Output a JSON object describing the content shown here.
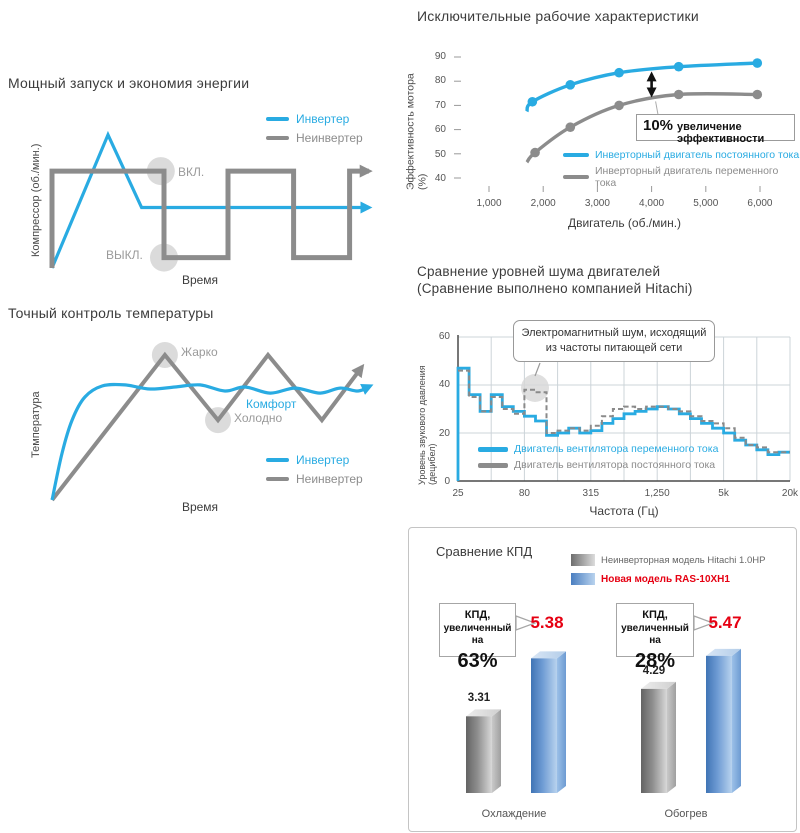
{
  "colors": {
    "accent_blue": "#29abe2",
    "line_gray": "#8c8c8c",
    "highlight_circle": "#d2d2d2",
    "red": "#e60012",
    "grid": "#ccd4d9",
    "axis": "#4a4a4a",
    "title_text": "#3c3c3c",
    "bar_blue_dark": "#3f74b5",
    "bar_blue_light": "#b9d3ee",
    "bar_gray_dark": "#636363",
    "bar_gray_light": "#d9d9d9"
  },
  "chart_data": [
    {
      "id": "compressor",
      "type": "line",
      "title": "Мощный запуск и экономия энергии",
      "xlabel": "Время",
      "ylabel": "Компрессор (об./мин.)",
      "legend": [
        {
          "label": "Инвертер",
          "color": "#29abe2"
        },
        {
          "label": "Неинвертер",
          "color": "#8c8c8c"
        }
      ],
      "state_labels": {
        "on": "ВКЛ.",
        "off": "ВЫКЛ."
      },
      "units": "qualitative diagram, coordinates are percent of plot area",
      "series": [
        {
          "name": "Инвертер",
          "color": "#29abe2",
          "points": [
            [
              0,
              0
            ],
            [
              17.5,
              77
            ],
            [
              28,
              35
            ],
            [
              99,
              35
            ]
          ]
        },
        {
          "name": "Неинвертер",
          "color": "#8c8c8c",
          "points": [
            [
              0,
              0
            ],
            [
              0,
              56
            ],
            [
              35,
              56
            ],
            [
              35,
              6
            ],
            [
              55,
              6
            ],
            [
              55,
              56
            ],
            [
              75.5,
              56
            ],
            [
              75.5,
              6
            ],
            [
              93,
              6
            ],
            [
              93,
              56
            ],
            [
              99,
              56
            ]
          ]
        }
      ],
      "markers": {
        "on_circle": [
          34,
          56
        ],
        "off_circle": [
          35,
          6
        ]
      }
    },
    {
      "id": "temperature",
      "type": "line",
      "title": "Точный контроль температуры",
      "xlabel": "Время",
      "ylabel": "Температура",
      "legend": [
        {
          "label": "Инвертер",
          "color": "#29abe2"
        },
        {
          "label": "Неинвертер",
          "color": "#8c8c8c"
        }
      ],
      "point_labels": {
        "hot": "Жарко",
        "cold": "Холодно",
        "comfort": "Комфорт"
      },
      "units": "qualitative diagram, coordinates are percent of plot area",
      "series": [
        {
          "name": "Неинвертер",
          "color": "#8c8c8c",
          "points": [
            [
              3.5,
              5.4
            ],
            [
              36.2,
              83.8
            ],
            [
              51.6,
              48.6
            ],
            [
              66.1,
              83.8
            ],
            [
              81.7,
              48.6
            ],
            [
              93.3,
              77.3
            ]
          ]
        },
        {
          "name": "Инвертер",
          "color": "#29abe2",
          "points": [
            [
              3.5,
              5.4
            ],
            [
              6.4,
              30.8
            ],
            [
              9.3,
              48.6
            ],
            [
              13,
              61.1
            ],
            [
              18,
              67
            ],
            [
              24.6,
              67.6
            ],
            [
              31.9,
              65.4
            ],
            [
              39.1,
              66.5
            ],
            [
              46.4,
              67.6
            ],
            [
              53.6,
              64.3
            ],
            [
              59.4,
              66.5
            ],
            [
              66.7,
              63.2
            ],
            [
              73.9,
              65.9
            ],
            [
              81.2,
              63.2
            ],
            [
              87,
              65.9
            ],
            [
              92.2,
              64.3
            ],
            [
              95.7,
              67
            ]
          ]
        }
      ]
    },
    {
      "id": "efficiency",
      "type": "line",
      "title": "Исключительные рабочие характеристики",
      "xlabel": "Двигатель (об./мин.)",
      "ylabel": "Эффективность мотора (%)",
      "xlim": [
        1000,
        6000
      ],
      "ylim": [
        40,
        90
      ],
      "yticks": [
        "90",
        "80",
        "70",
        "60",
        "50",
        "40"
      ],
      "xticks": [
        "1,000",
        "2,000",
        "3,000",
        "4,000",
        "5,000",
        "6,000"
      ],
      "annotation": {
        "strong": "10%",
        "text": "увеличение эффективности",
        "at_x": 4000
      },
      "series": [
        {
          "name": "Инверторный двигатель постоянного тока",
          "color": "#29abe2",
          "x": [
            1700,
            1800,
            2500,
            3400,
            4500,
            5950
          ],
          "y": [
            67.5,
            71.5,
            78.5,
            83.5,
            86,
            87.5
          ],
          "marker_from": 1
        },
        {
          "name": "Инверторный двигатель переменного тока",
          "color": "#8c8c8c",
          "x": [
            1700,
            1850,
            2500,
            3400,
            4500,
            5950
          ],
          "y": [
            46.5,
            50.5,
            61,
            70,
            74.5,
            74.5
          ],
          "marker_from": 1
        }
      ]
    },
    {
      "id": "noise",
      "type": "step-line",
      "title": "Сравнение уровней шума двигателей",
      "subtitle": "(Сравнение выполнено компанией Hitachi)",
      "xlabel": "Частота (Гц)",
      "ylabel": "Уровень звукового давления (децибел)",
      "ylim": [
        0,
        60
      ],
      "yticks": [
        "60",
        "40",
        "20",
        "0"
      ],
      "xticks": [
        "25",
        "80",
        "315",
        "1,250",
        "5k",
        "20k"
      ],
      "callout": {
        "line1": "Электромагнитный шум, исходящий",
        "line2": "из частоты питающей сети"
      },
      "units": "values in dB per third-octave band, 25 Hz - 20 kHz, log frequency axis",
      "series": [
        {
          "name": "Двигатель вентилятора переменного тока",
          "color": "#29abe2",
          "style": "solid",
          "values": [
            47,
            36,
            29,
            36,
            31,
            29,
            27,
            25,
            19,
            20,
            22,
            20,
            21,
            24,
            26,
            28,
            29,
            30,
            31,
            30,
            28,
            26,
            24,
            22,
            20,
            17,
            15,
            13,
            11,
            12
          ]
        },
        {
          "name": "Двигатель вентилятора постоянного тока",
          "color": "#8a8a8a",
          "style": "dashed",
          "values": [
            46,
            35,
            29,
            35,
            30,
            28,
            38,
            37,
            20,
            21,
            22,
            21,
            23,
            27,
            30,
            31,
            30,
            31,
            31,
            30,
            29,
            27,
            25,
            24,
            22,
            18,
            15,
            14,
            12,
            12
          ]
        }
      ]
    },
    {
      "id": "cop",
      "type": "bar",
      "title": "Сравнение КПД",
      "legend": [
        {
          "label": "Неинверторная модель Hitachi 1.0HP",
          "color": "gray"
        },
        {
          "label": "Новая модель RAS-10XH1",
          "color": "blue",
          "emphasis": true
        }
      ],
      "groups": [
        {
          "category": "Охлаждение",
          "callout_line1": "КПД,",
          "callout_line2": "увеличенный на",
          "callout_percent": "63%",
          "old_value": 3.31,
          "old_label": "3.31",
          "new_value": 5.38,
          "new_label": "5.38"
        },
        {
          "category": "Обогрев",
          "callout_line1": "КПД,",
          "callout_line2": "увеличенный на",
          "callout_percent": "28%",
          "old_value": 4.29,
          "old_label": "4.29",
          "new_value": 5.47,
          "new_label": "5.47"
        }
      ]
    }
  ]
}
